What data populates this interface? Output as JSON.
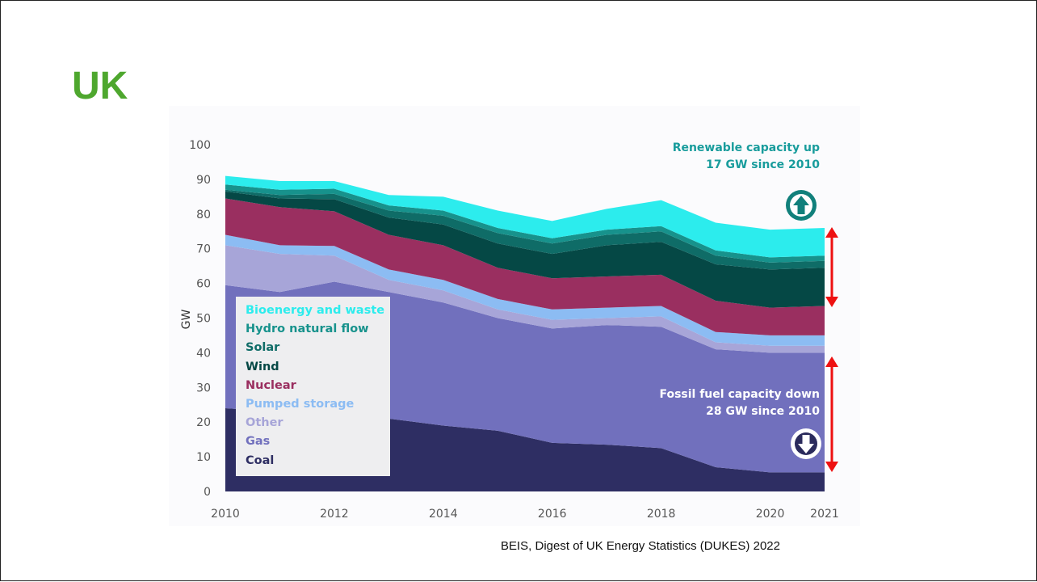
{
  "slide": {
    "title": "UK",
    "source": "BEIS, Digest of UK Energy Statistics (DUKES) 2022"
  },
  "annotations": {
    "renewable_line1": "Renewable capacity up",
    "renewable_line2": "17 GW since 2010",
    "fossil_line1": "Fossil fuel capacity down",
    "fossil_line2": "28 GW since 2010",
    "renewable_color": "#189c9c",
    "arrow_color": "#ee1111"
  },
  "chart_data": {
    "type": "area",
    "stacked": true,
    "x": [
      2010,
      2011,
      2012,
      2013,
      2014,
      2015,
      2016,
      2017,
      2018,
      2019,
      2020,
      2021
    ],
    "x_ticks": [
      "2010",
      "2012",
      "2014",
      "2016",
      "2018",
      "2020",
      "2021"
    ],
    "xlim": [
      2010,
      2021
    ],
    "ylabel": "GW",
    "ylim": [
      0,
      100
    ],
    "y_ticks": [
      0,
      10,
      20,
      30,
      40,
      50,
      60,
      70,
      80,
      90,
      100
    ],
    "grid": false,
    "legend_position": "bottom-left",
    "series": [
      {
        "name": "Coal",
        "color": "#2e2e63",
        "values": [
          24,
          23,
          23,
          21,
          19,
          17.5,
          14,
          13.5,
          12.5,
          7,
          5.5,
          5.5
        ]
      },
      {
        "name": "Gas",
        "color": "#7170bd",
        "values": [
          35.5,
          34.5,
          37.5,
          36.5,
          35.5,
          32.5,
          33,
          34.5,
          35,
          34,
          34.5,
          34.5
        ]
      },
      {
        "name": "Other",
        "color": "#a7a5d8",
        "values": [
          11.5,
          11,
          7.5,
          3.5,
          3.5,
          2.5,
          2.5,
          2,
          3,
          2,
          2,
          2
        ]
      },
      {
        "name": "Pumped storage",
        "color": "#8cbcf3",
        "values": [
          3,
          2.5,
          2.8,
          3,
          3,
          3,
          3,
          3,
          3,
          3,
          3,
          3
        ]
      },
      {
        "name": "Nuclear",
        "color": "#9a2f60",
        "values": [
          10.5,
          11,
          10,
          10,
          10,
          9,
          9,
          9,
          9,
          9,
          8,
          8.5
        ]
      },
      {
        "name": "Wind",
        "color": "#054845",
        "values": [
          2,
          2.5,
          3.5,
          5,
          6,
          7,
          7,
          9,
          9.5,
          10.5,
          11,
          11
        ]
      },
      {
        "name": "Solar",
        "color": "#0f6c67",
        "values": [
          0.5,
          1,
          1.5,
          2,
          2.5,
          3,
          3,
          3,
          3,
          2.5,
          2,
          2
        ]
      },
      {
        "name": "Hydro natural flow",
        "color": "#17928c",
        "values": [
          1.5,
          1.5,
          1.5,
          1.5,
          1.5,
          1.5,
          1.5,
          1.5,
          1.5,
          1.5,
          1.5,
          1.5
        ]
      },
      {
        "name": "Bioenergy and waste",
        "color": "#2ceced",
        "values": [
          2.5,
          2.5,
          2.2,
          3,
          4,
          5,
          5,
          6,
          7.5,
          8,
          8,
          8
        ]
      }
    ]
  }
}
